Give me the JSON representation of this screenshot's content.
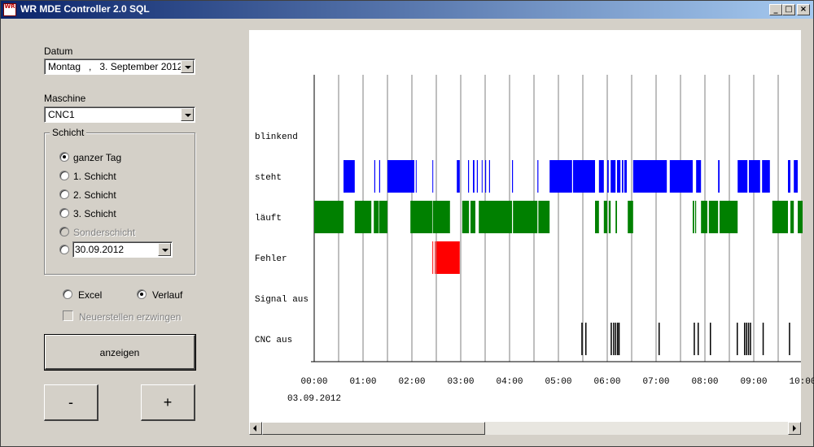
{
  "window": {
    "title": "WR MDE Controller 2.0 SQL",
    "icon_text": "WR"
  },
  "form": {
    "datum_label": "Datum",
    "datum_value": "Montag   ,   3. September 2012",
    "maschine_label": "Maschine",
    "maschine_value": "CNC1",
    "schicht_label": "Schicht",
    "schicht_options": [
      {
        "label": "ganzer Tag",
        "checked": true,
        "enabled": true
      },
      {
        "label": "1. Schicht",
        "checked": false,
        "enabled": true
      },
      {
        "label": "2. Schicht",
        "checked": false,
        "enabled": true
      },
      {
        "label": "3. Schicht",
        "checked": false,
        "enabled": true
      },
      {
        "label": "Sonderschicht",
        "checked": false,
        "enabled": false
      }
    ],
    "custom_date": "30.09.2012",
    "output_excel": "Excel",
    "output_verlauf": "Verlauf",
    "output_selected": "Verlauf",
    "force_rebuild": "Neuerstellen erzwingen",
    "show_button": "anzeigen",
    "minus_button": "-",
    "plus_button": "+"
  },
  "chart_data": {
    "type": "gantt",
    "date_label": "03.09.2012",
    "x_tick_labels": [
      "00:00",
      "01:00",
      "02:00",
      "03:00",
      "04:00",
      "05:00",
      "06:00",
      "07:00",
      "08:00",
      "09:00",
      "10:00"
    ],
    "x_range_hours": [
      0,
      10
    ],
    "rows": [
      {
        "label": "blinkend",
        "color": "#0000ff",
        "segments": []
      },
      {
        "label": "steht",
        "color": "#0000ff",
        "segments": [
          [
            0.6,
            0.83
          ],
          [
            1.23,
            1.25
          ],
          [
            1.33,
            1.35
          ],
          [
            1.5,
            2.05
          ],
          [
            2.08,
            2.09
          ],
          [
            2.42,
            2.43
          ],
          [
            2.92,
            2.98
          ],
          [
            3.15,
            3.17
          ],
          [
            3.25,
            3.28
          ],
          [
            3.33,
            3.35
          ],
          [
            3.43,
            3.44
          ],
          [
            3.5,
            3.52
          ],
          [
            3.58,
            3.6
          ],
          [
            4.05,
            4.07
          ],
          [
            4.57,
            4.59
          ],
          [
            4.82,
            5.28
          ],
          [
            5.3,
            5.75
          ],
          [
            5.83,
            5.93
          ],
          [
            6.0,
            6.03
          ],
          [
            6.07,
            6.17
          ],
          [
            6.2,
            6.27
          ],
          [
            6.3,
            6.33
          ],
          [
            6.35,
            6.4
          ],
          [
            6.53,
            7.22
          ],
          [
            7.28,
            7.75
          ],
          [
            7.82,
            7.92
          ],
          [
            8.27,
            8.3
          ],
          [
            8.67,
            8.87
          ],
          [
            8.9,
            9.13
          ],
          [
            9.17,
            9.33
          ],
          [
            9.7,
            9.75
          ],
          [
            9.82,
            9.9
          ]
        ]
      },
      {
        "label": "läuft",
        "color": "#008000",
        "segments": [
          [
            0.0,
            0.6
          ],
          [
            0.83,
            1.17
          ],
          [
            1.22,
            1.32
          ],
          [
            1.33,
            1.5
          ],
          [
            1.97,
            2.42
          ],
          [
            2.43,
            2.78
          ],
          [
            3.03,
            3.17
          ],
          [
            3.2,
            3.3
          ],
          [
            3.37,
            4.05
          ],
          [
            4.07,
            4.57
          ],
          [
            4.59,
            4.82
          ],
          [
            5.75,
            5.83
          ],
          [
            5.93,
            6.0
          ],
          [
            6.03,
            6.07
          ],
          [
            6.17,
            6.2
          ],
          [
            6.42,
            6.53
          ],
          [
            7.75,
            7.78
          ],
          [
            7.8,
            7.82
          ],
          [
            7.92,
            8.05
          ],
          [
            8.08,
            8.27
          ],
          [
            8.3,
            8.67
          ],
          [
            9.38,
            9.7
          ],
          [
            9.75,
            9.82
          ],
          [
            9.9,
            10.0
          ]
        ]
      },
      {
        "label": "Fehler",
        "color": "#ff0000",
        "segments": [
          [
            2.42,
            2.43
          ],
          [
            2.47,
            2.48
          ],
          [
            2.5,
            2.98
          ]
        ]
      },
      {
        "label": "Signal aus",
        "color": "#000000",
        "segments": []
      },
      {
        "label": "CNC aus",
        "color": "#000000",
        "segments": [
          [
            5.47,
            5.49
          ],
          [
            5.55,
            5.57
          ],
          [
            6.07,
            6.09
          ],
          [
            6.12,
            6.14
          ],
          [
            6.16,
            6.18
          ],
          [
            6.2,
            6.22
          ],
          [
            6.23,
            6.25
          ],
          [
            7.05,
            7.07
          ],
          [
            7.77,
            7.79
          ],
          [
            7.85,
            7.87
          ],
          [
            8.1,
            8.12
          ],
          [
            8.65,
            8.67
          ],
          [
            8.8,
            8.82
          ],
          [
            8.84,
            8.86
          ],
          [
            8.88,
            8.9
          ],
          [
            8.92,
            8.94
          ],
          [
            9.18,
            9.2
          ],
          [
            9.72,
            9.74
          ]
        ]
      }
    ]
  }
}
